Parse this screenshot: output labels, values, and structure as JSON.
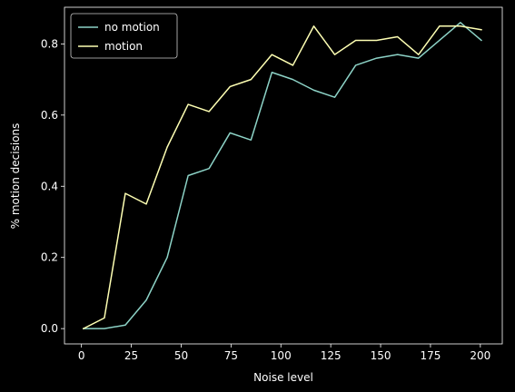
{
  "chart_data": {
    "type": "line",
    "xlabel": "Noise level",
    "ylabel": "% motion decisions",
    "xlim": [
      -8.5,
      211.0
    ],
    "ylim": [
      -0.043,
      0.903
    ],
    "xticks": [
      0,
      25,
      50,
      75,
      100,
      125,
      150,
      175,
      200
    ],
    "xtick_labels": [
      "0",
      "25",
      "50",
      "75",
      "100",
      "125",
      "150",
      "175",
      "200"
    ],
    "yticks": [
      0.0,
      0.2,
      0.4,
      0.6,
      0.8
    ],
    "ytick_labels": [
      "0.0",
      "0.2",
      "0.4",
      "0.6",
      "0.8"
    ],
    "grid": false,
    "legend_position": "upper-left",
    "x": [
      1.0,
      11.5,
      22.0,
      32.5,
      43.0,
      53.5,
      64.0,
      74.5,
      85.0,
      95.5,
      106.0,
      116.5,
      127.0,
      137.5,
      148.0,
      158.5,
      169.0,
      179.5,
      190.0,
      200.5
    ],
    "series": [
      {
        "name": "no motion",
        "color": "#8dd3c7",
        "values": [
          0.0,
          0.0,
          0.01,
          0.08,
          0.2,
          0.43,
          0.45,
          0.55,
          0.53,
          0.72,
          0.7,
          0.67,
          0.65,
          0.74,
          0.76,
          0.77,
          0.76,
          0.81,
          0.86,
          0.81
        ]
      },
      {
        "name": "motion",
        "color": "#feffb3",
        "values": [
          0.0,
          0.03,
          0.38,
          0.35,
          0.51,
          0.63,
          0.61,
          0.68,
          0.7,
          0.77,
          0.74,
          0.85,
          0.77,
          0.81,
          0.81,
          0.82,
          0.77,
          0.85,
          0.85,
          0.84
        ]
      }
    ]
  }
}
